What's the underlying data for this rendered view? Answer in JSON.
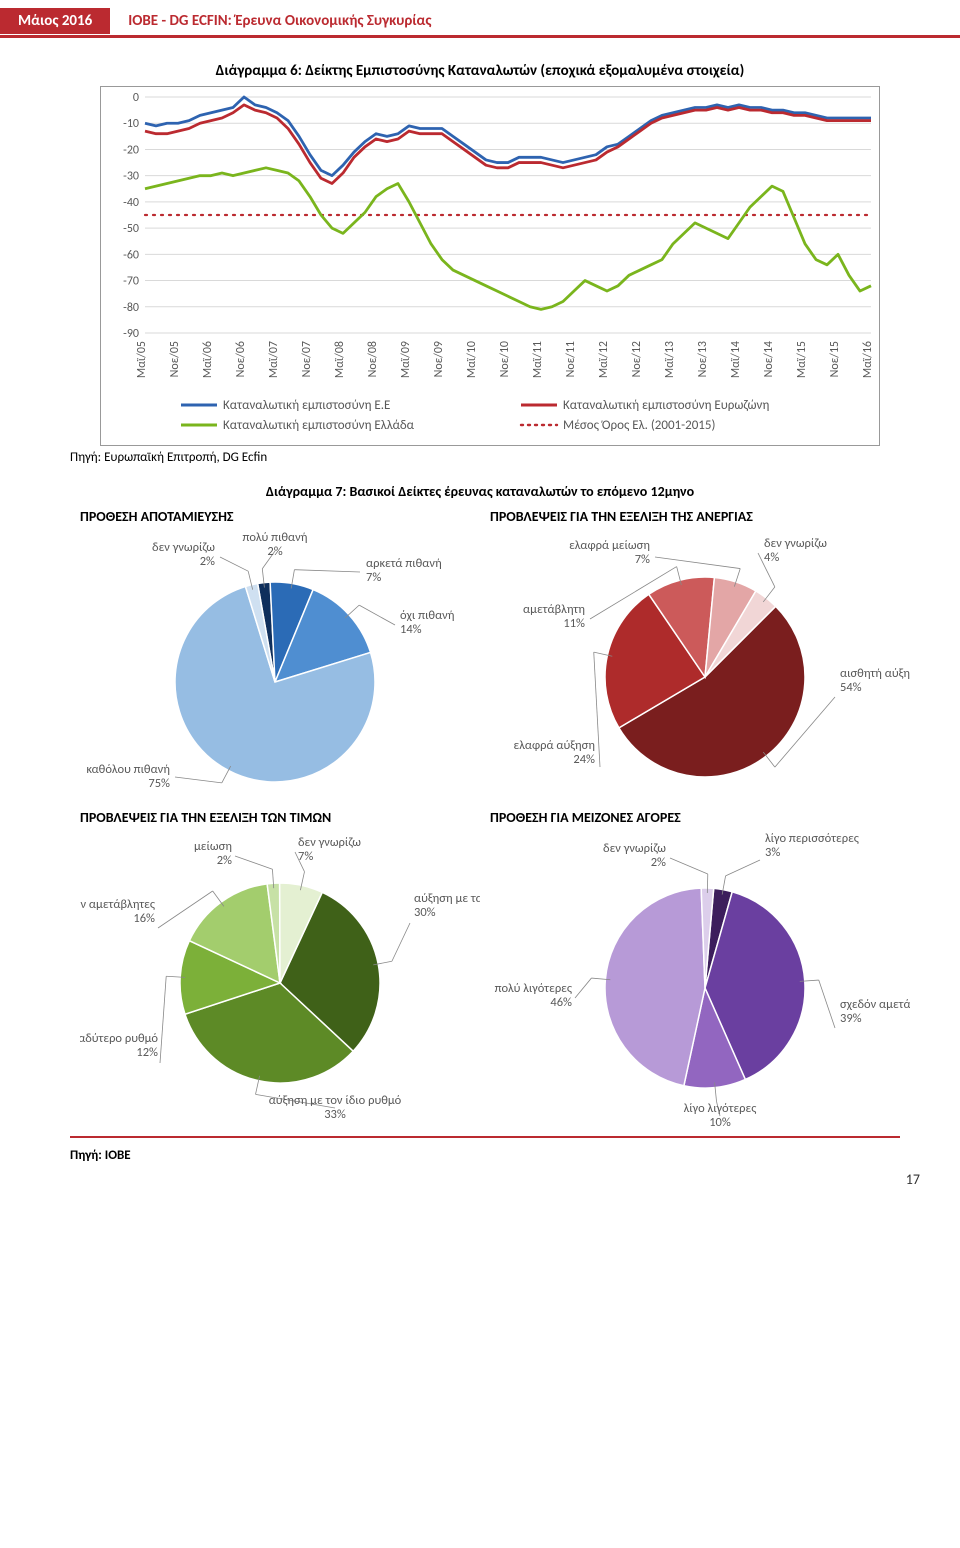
{
  "header": {
    "date": "Μάιος 2016",
    "org": "ΙΟΒΕ - DG ECFIN: Έρευνα Οικονομικής Συγκυρίας"
  },
  "source_top": "Πηγή: Ευρωπαϊκή Επιτροπή, DG Ecfin",
  "source_bottom": "Πηγή: ΙΟΒΕ",
  "page_number": "17",
  "chart6": {
    "title": "Διάγραμμα 6: Δείκτης Εμπιστοσύνης Καταναλωτών (εποχικά εξομαλυμένα στοιχεία)",
    "ylim": [
      -90,
      0
    ],
    "ytick_step": 10,
    "x_labels": [
      "Μαϊ/05",
      "Νοε/05",
      "Μαϊ/06",
      "Νοε/06",
      "Μαϊ/07",
      "Νοε/07",
      "Μαϊ/08",
      "Νοε/08",
      "Μαϊ/09",
      "Νοε/09",
      "Μαϊ/10",
      "Νοε/10",
      "Μαϊ/11",
      "Νοε/11",
      "Μαϊ/12",
      "Νοε/12",
      "Μαϊ/13",
      "Νοε/13",
      "Μαϊ/14",
      "Νοε/14",
      "Μαϊ/15",
      "Νοε/15",
      "Μαϊ/16"
    ],
    "grid_color": "#d9d9d9",
    "series": {
      "ee": {
        "label": "Καταναλωτική εμπιστοσύνη Ε.Ε",
        "color": "#2e63b0",
        "width": 2.8,
        "values": [
          -10,
          -11,
          -10,
          -10,
          -9,
          -7,
          -6,
          -5,
          -4,
          0,
          -3,
          -4,
          -6,
          -9,
          -15,
          -22,
          -28,
          -30,
          -26,
          -21,
          -17,
          -14,
          -15,
          -14,
          -11,
          -12,
          -12,
          -12,
          -15,
          -18,
          -21,
          -24,
          -25,
          -25,
          -23,
          -23,
          -23,
          -24,
          -25,
          -24,
          -23,
          -22,
          -19,
          -18,
          -15,
          -12,
          -9,
          -7,
          -6,
          -5,
          -4,
          -4,
          -3,
          -4,
          -3,
          -4,
          -4,
          -5,
          -5,
          -6,
          -6,
          -7,
          -8,
          -8,
          -8,
          -8,
          -8
        ]
      },
      "ez": {
        "label": "Καταναλωτική εμπιστοσύνη Ευρωζώνη",
        "color": "#bb2a30",
        "width": 2.8,
        "values": [
          -13,
          -14,
          -14,
          -13,
          -12,
          -10,
          -9,
          -8,
          -6,
          -3,
          -5,
          -6,
          -8,
          -12,
          -18,
          -25,
          -31,
          -33,
          -29,
          -23,
          -19,
          -16,
          -17,
          -16,
          -13,
          -14,
          -14,
          -14,
          -17,
          -20,
          -23,
          -26,
          -27,
          -27,
          -25,
          -25,
          -25,
          -26,
          -27,
          -26,
          -25,
          -24,
          -21,
          -19,
          -16,
          -13,
          -10,
          -8,
          -7,
          -6,
          -5,
          -5,
          -4,
          -5,
          -4,
          -5,
          -5,
          -6,
          -6,
          -7,
          -7,
          -8,
          -9,
          -9,
          -9,
          -9,
          -9
        ]
      },
      "gr": {
        "label": "Καταναλωτική εμπιστοσύνη Ελλάδα",
        "color": "#7ab51d",
        "width": 2.8,
        "values": [
          -35,
          -34,
          -33,
          -32,
          -31,
          -30,
          -30,
          -29,
          -30,
          -29,
          -28,
          -27,
          -28,
          -29,
          -32,
          -38,
          -45,
          -50,
          -52,
          -48,
          -44,
          -38,
          -35,
          -33,
          -40,
          -48,
          -56,
          -62,
          -66,
          -68,
          -70,
          -72,
          -74,
          -76,
          -78,
          -80,
          -81,
          -80,
          -78,
          -74,
          -70,
          -72,
          -74,
          -72,
          -68,
          -66,
          -64,
          -62,
          -56,
          -52,
          -48,
          -50,
          -52,
          -54,
          -48,
          -42,
          -38,
          -34,
          -36,
          -46,
          -56,
          -62,
          -64,
          -60,
          -68,
          -74,
          -72
        ]
      },
      "avg_gr": {
        "label": "Μέσος Όρος Ελ. (2001-2015)",
        "color": "#bb2a30",
        "dash": true,
        "value": -45
      }
    }
  },
  "diagram7_title": "Διάγραμμα 7: Βασικοί Δείκτες έρευνας καταναλωτών το επόμενο 12μηνο",
  "pie_savings": {
    "title": "ΠΡΟΘΕΣΗ ΑΠΟΤΑΜΙΕΥΣΗΣ",
    "slices": [
      {
        "label": "πολύ πιθανή",
        "value": 2,
        "color": "#0f2f5c"
      },
      {
        "label": "αρκετά πιθανή",
        "value": 7,
        "color": "#2b6bb6"
      },
      {
        "label": "όχι πιθανή",
        "value": 14,
        "color": "#4f8ed1"
      },
      {
        "label": "καθόλου πιθανή",
        "value": 75,
        "color": "#96bde3"
      },
      {
        "label": "δεν γνωρίζω",
        "value": 2,
        "color": "#cfe0f1"
      }
    ]
  },
  "pie_unemp": {
    "title": "ΠΡΟΒΛΕΨΕΙΣ ΓΙΑ ΤΗΝ ΕΞΕΛΙΞΗ ΤΗΣ ΑΝΕΡΓΙΑΣ",
    "slices": [
      {
        "label": "αισθητή αύξηση",
        "value": 54,
        "color": "#7a1e1e"
      },
      {
        "label": "ελαφρά αύξηση",
        "value": 24,
        "color": "#ae2b2b"
      },
      {
        "label": "αμετάβλητη",
        "value": 11,
        "color": "#cc5a5a"
      },
      {
        "label": "ελαφρά μείωση",
        "value": 7,
        "color": "#e3a6a6"
      },
      {
        "label": "δεν γνωρίζω",
        "value": 4,
        "color": "#f1d6d6"
      }
    ]
  },
  "pie_prices": {
    "title": "ΠΡΟΒΛΕΨΕΙΣ ΓΙΑ ΤΗΝ ΕΞΕΛΙΞΗ ΤΩΝ ΤΙΜΩΝ",
    "slices": [
      {
        "label": "αύξηση με ταχύτερο ρυθμό",
        "value": 30,
        "color": "#3f6118"
      },
      {
        "label": "αύξηση με τον ίδιο ρυθμό",
        "value": 33,
        "color": "#5d8a26"
      },
      {
        "label": "αύξηση με βραδύτερο ρυθμό",
        "value": 12,
        "color": "#7cb039"
      },
      {
        "label": "σχεδόν αμετάβλητες",
        "value": 16,
        "color": "#a3cd6d"
      },
      {
        "label": "μείωση",
        "value": 2,
        "color": "#c7e1a6"
      },
      {
        "label": "δεν γνωρίζω",
        "value": 7,
        "color": "#e4f0d2"
      }
    ]
  },
  "pie_majorbuy": {
    "title": "ΠΡΟΘΕΣΗ ΓΙΑ ΜΕΙΖΟΝΕΣ ΑΓΟΡΕΣ",
    "slices": [
      {
        "label": "λίγο περισσότερες",
        "value": 3,
        "color": "#3c1e5c"
      },
      {
        "label": "σχεδόν αμετάβλητες",
        "value": 39,
        "color": "#6a3fa0"
      },
      {
        "label": "λίγο λιγότερες",
        "value": 10,
        "color": "#9266c0"
      },
      {
        "label": "πολύ λιγότερες",
        "value": 46,
        "color": "#b79ad7"
      },
      {
        "label": "δεν γνωρίζω",
        "value": 2,
        "color": "#dcceeb"
      }
    ]
  }
}
